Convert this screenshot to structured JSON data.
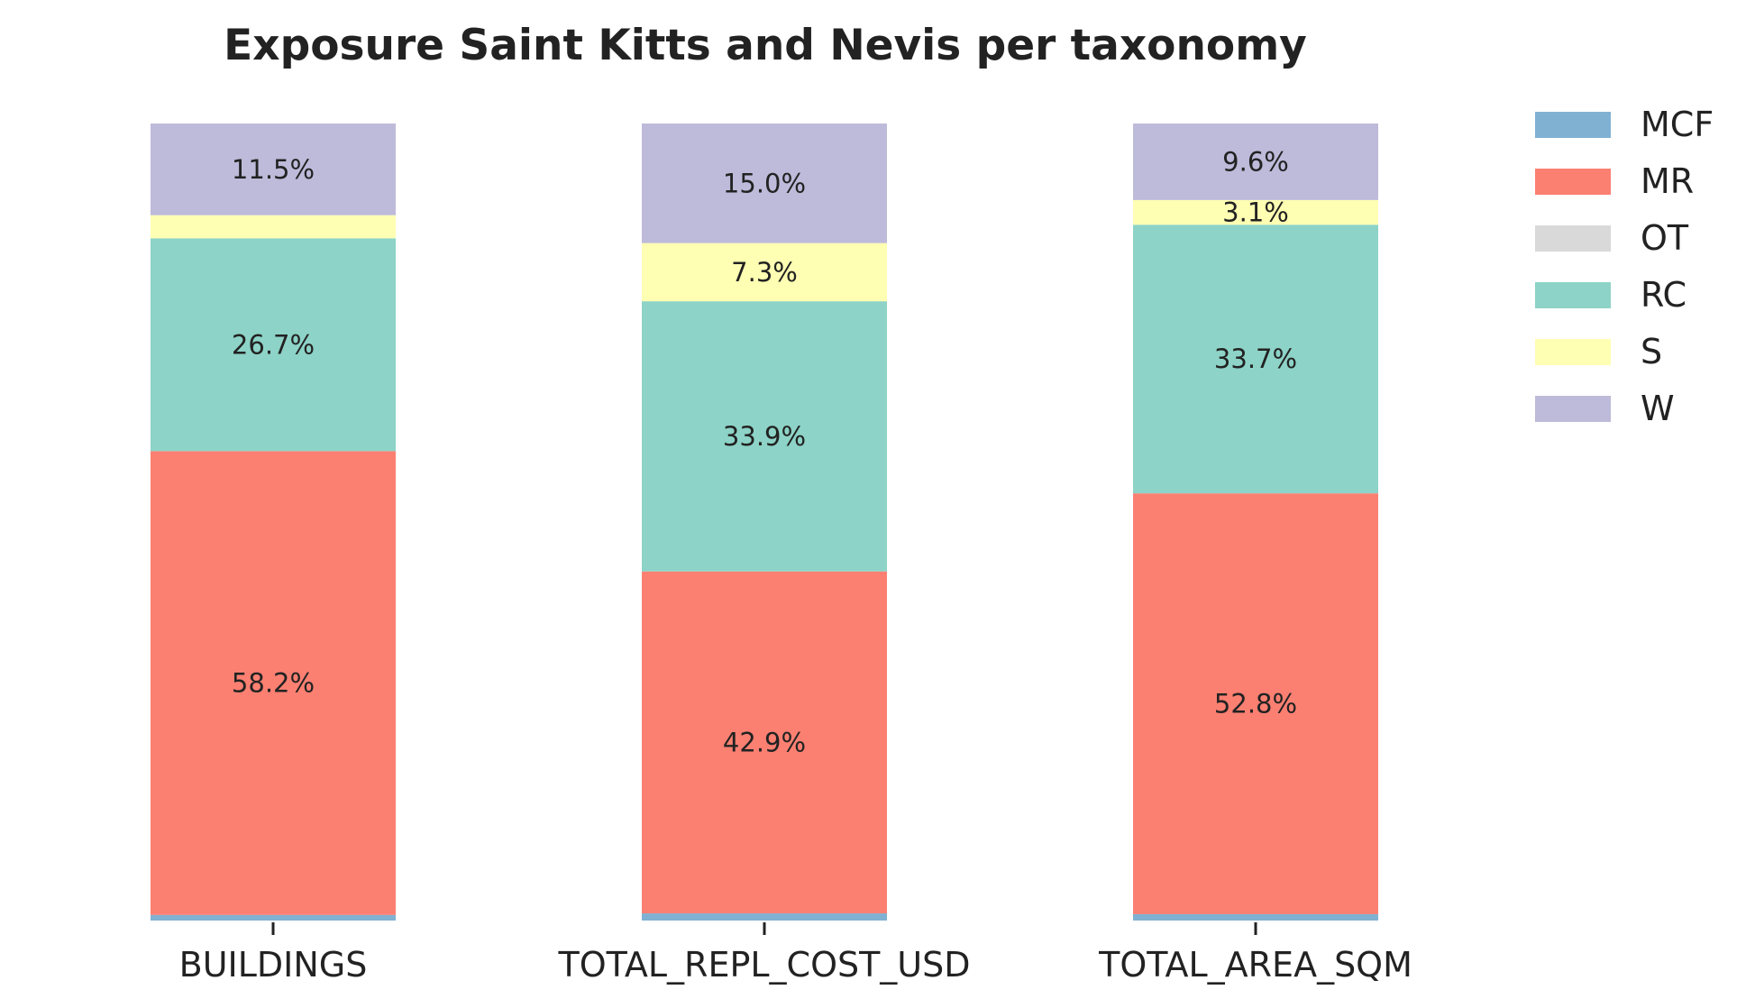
{
  "chart_data": {
    "type": "bar",
    "stacked": true,
    "normalized": true,
    "title": "Exposure Saint Kitts and Nevis per taxonomy",
    "xlabel": "",
    "ylabel": "",
    "ylim": [
      0,
      100
    ],
    "grid": false,
    "legend_position": "right",
    "categories": [
      "BUILDINGS",
      "TOTAL_REPL_COST_USD",
      "TOTAL_AREA_SQM"
    ],
    "series": [
      {
        "name": "MCF",
        "color": "#80b1d3",
        "values": [
          0.7,
          0.9,
          0.8
        ],
        "labels": [
          "",
          "",
          ""
        ]
      },
      {
        "name": "MR",
        "color": "#fb8072",
        "values": [
          58.2,
          42.9,
          52.8
        ],
        "labels": [
          "58.2%",
          "42.9%",
          "52.8%"
        ]
      },
      {
        "name": "OT",
        "color": "#d9d9d9",
        "values": [
          0.0,
          0.0,
          0.0
        ],
        "labels": [
          "",
          "",
          ""
        ]
      },
      {
        "name": "RC",
        "color": "#8dd3c7",
        "values": [
          26.7,
          33.9,
          33.7
        ],
        "labels": [
          "26.7%",
          "33.9%",
          "33.7%"
        ]
      },
      {
        "name": "S",
        "color": "#ffffb3",
        "values": [
          2.9,
          7.3,
          3.1
        ],
        "labels": [
          "",
          "7.3%",
          "3.1%"
        ]
      },
      {
        "name": "W",
        "color": "#bebada",
        "values": [
          11.5,
          15.0,
          9.6
        ],
        "labels": [
          "11.5%",
          "15.0%",
          "9.6%"
        ]
      }
    ]
  }
}
